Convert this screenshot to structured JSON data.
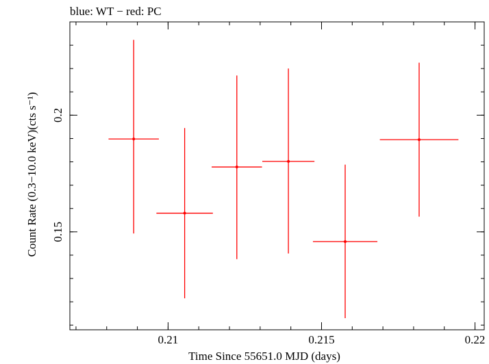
{
  "chart_data": {
    "type": "scatter",
    "title": "blue: WT − red: PC",
    "xlabel": "Time Since 55651.0 MJD (days)",
    "ylabel": "Count Rate (0.3−10.0 keV)(cts s⁻¹)",
    "xlim": [
      0.2068,
      0.2203
    ],
    "ylim": [
      0.108,
      0.24
    ],
    "x_ticks": [
      {
        "value": 0.21,
        "label": "0.21"
      },
      {
        "value": 0.215,
        "label": "0.215"
      },
      {
        "value": 0.22,
        "label": "0.22"
      }
    ],
    "y_ticks": [
      {
        "value": 0.15,
        "label": "0.15"
      },
      {
        "value": 0.2,
        "label": "0.2"
      }
    ],
    "grid": false,
    "series": [
      {
        "color": "#ff0000",
        "points": [
          {
            "x": 0.20888,
            "xerr": 0.00082,
            "y": 0.1898,
            "yerr_low": 0.0405,
            "yerr_high": 0.0425
          },
          {
            "x": 0.21054,
            "xerr": 0.00092,
            "y": 0.158,
            "yerr_low": 0.0365,
            "yerr_high": 0.0365
          },
          {
            "x": 0.21224,
            "xerr": 0.00082,
            "y": 0.1778,
            "yerr_low": 0.0395,
            "yerr_high": 0.0392
          },
          {
            "x": 0.21392,
            "xerr": 0.00085,
            "y": 0.1802,
            "yerr_low": 0.0395,
            "yerr_high": 0.0398
          },
          {
            "x": 0.21577,
            "xerr": 0.00105,
            "y": 0.1458,
            "yerr_low": 0.0328,
            "yerr_high": 0.033
          },
          {
            "x": 0.21818,
            "xerr": 0.00128,
            "y": 0.1895,
            "yerr_low": 0.033,
            "yerr_high": 0.033
          }
        ]
      }
    ]
  }
}
